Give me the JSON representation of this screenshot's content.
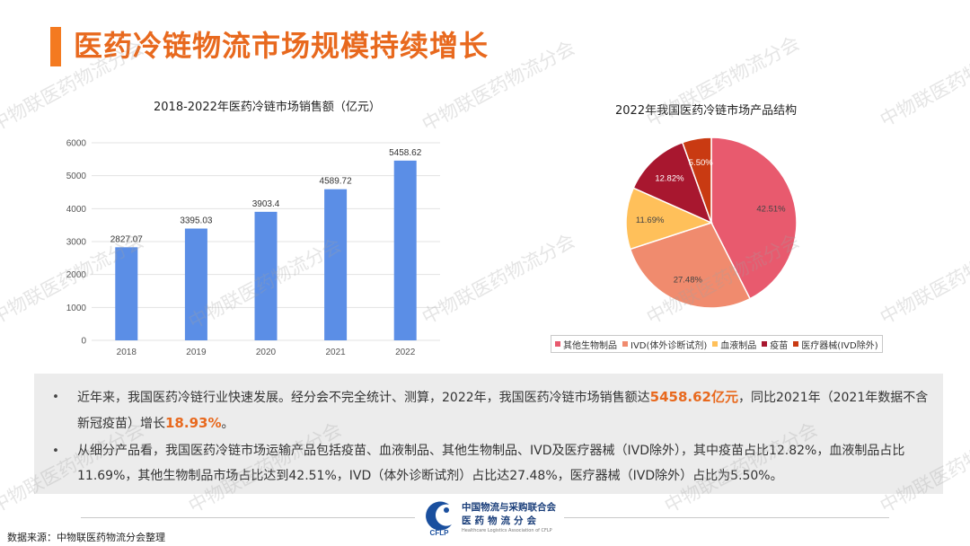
{
  "header": {
    "title": "医药冷链物流市场规模持续增长"
  },
  "watermark": "中物联医药物流分会",
  "chart_data": [
    {
      "type": "bar",
      "title": "2018-2022年医药冷链市场销售额（亿元）",
      "categories": [
        "2018",
        "2019",
        "2020",
        "2021",
        "2022"
      ],
      "values": [
        2827.07,
        3395.03,
        3903.4,
        4589.72,
        5458.62
      ],
      "value_labels": [
        "2827.07",
        "3395.03",
        "3903.4",
        "4589.72",
        "5458.62"
      ],
      "yticks": [
        "0",
        "1000",
        "2000",
        "3000",
        "4000",
        "5000",
        "6000"
      ],
      "ylim": [
        0,
        6000
      ],
      "color": "#5B8EE6",
      "grid": true
    },
    {
      "type": "pie",
      "title": "2022年我国医药冷链市场产品结构",
      "labels": [
        "其他生物制品",
        "IVD(体外诊断试剂)",
        "血液制品",
        "疫苗",
        "医疗器械(IVD除外)"
      ],
      "values": [
        42.51,
        27.48,
        11.69,
        12.82,
        5.5
      ],
      "value_labels": [
        "42.51%",
        "27.48%",
        "11.69%",
        "12.82%",
        "5.50%"
      ],
      "colors": [
        "#E85A6E",
        "#F08B6E",
        "#FFC05A",
        "#A8172F",
        "#C93A12"
      ],
      "legend_position": "bottom"
    }
  ],
  "summary": {
    "bullet": "•",
    "p1_a": "近年来，我国医药冷链行业快速发展。经分会不完全统计、测算，2022年，我国医药冷链市场销售额达",
    "p1_hl1": "5458.62亿元",
    "p1_b": "，同比2021年（2021年数据不含新冠疫苗）增长",
    "p1_hl2": "18.93%",
    "p1_c": "。",
    "p2": "从细分产品看，我国医药冷链市场运输产品包括疫苗、血液制品、其他生物制品、IVD及医疗器械（IVD除外），其中疫苗占比12.82%，血液制品占比11.69%，其他生物制品市场占比达到42.51%，IVD（体外诊断试剂）占比达27.48%，医疗器械（IVD除外）占比为5.50%。"
  },
  "footer": {
    "org_cn_1": "中国物流与采购联合会",
    "org_cn_2": "医药物流分会",
    "org_en": "Healthcare Logistics Association of CFLP",
    "logo_text": "CFLP",
    "source": "数据来源：中物联医药物流分会整理"
  }
}
